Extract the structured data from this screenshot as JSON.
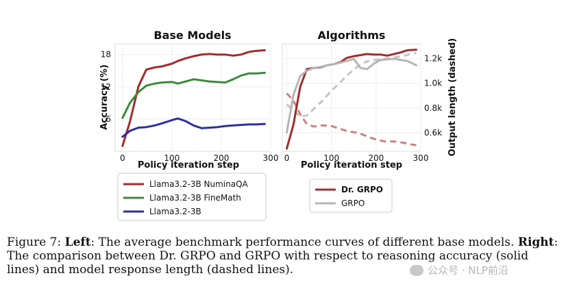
{
  "chart_data": [
    {
      "type": "line",
      "title": "Base Models",
      "xlabel": "Policy iteration step",
      "ylabel": "Accuracy (%)",
      "xlim": [
        -15,
        300
      ],
      "ylim": [
        0,
        20
      ],
      "xticks": [
        0,
        100,
        200,
        300
      ],
      "yticks": [
        6,
        12,
        18
      ],
      "series": [
        {
          "name": "Llama3.2-3B NuminaQA",
          "color": "#a32a2a",
          "x": [
            0,
            15,
            32,
            48,
            65,
            80,
            100,
            112,
            128,
            144,
            160,
            176,
            192,
            208,
            224,
            240,
            256,
            272,
            288
          ],
          "values": [
            1.0,
            5.5,
            12.0,
            15.2,
            15.6,
            15.8,
            16.3,
            16.8,
            17.3,
            17.7,
            18.0,
            18.1,
            18.0,
            18.0,
            17.8,
            18.0,
            18.5,
            18.7,
            18.8
          ]
        },
        {
          "name": "Llama3.2-3B FineMath",
          "color": "#3a8a3a",
          "x": [
            0,
            15,
            32,
            48,
            65,
            80,
            100,
            112,
            128,
            144,
            160,
            176,
            192,
            208,
            224,
            240,
            256,
            272,
            288
          ],
          "values": [
            6.2,
            9.0,
            11.0,
            12.2,
            12.6,
            12.8,
            12.9,
            12.6,
            13.0,
            13.4,
            13.2,
            13.0,
            12.9,
            12.8,
            13.4,
            14.1,
            14.5,
            14.5,
            14.6
          ]
        },
        {
          "name": "Llama3.2-3B",
          "color": "#2b2fa0",
          "x": [
            0,
            15,
            32,
            48,
            65,
            80,
            100,
            112,
            128,
            144,
            160,
            176,
            192,
            208,
            224,
            240,
            256,
            272,
            288
          ],
          "values": [
            2.7,
            3.8,
            4.4,
            4.5,
            4.8,
            5.2,
            5.8,
            6.1,
            5.6,
            4.8,
            4.3,
            4.4,
            4.5,
            4.7,
            4.8,
            4.9,
            5.0,
            5.0,
            5.1
          ]
        }
      ],
      "legend": [
        "Llama3.2-3B NuminaQA",
        "Llama3.2-3B FineMath",
        "Llama3.2-3B"
      ],
      "legend_position": "below"
    },
    {
      "type": "line",
      "title": "Algorithms",
      "xlabel": "Policy iteration step",
      "ylabel_right": "Output length (dashed)",
      "xlim": [
        -10,
        300
      ],
      "ylim_accuracy": [
        0,
        20
      ],
      "ylim_right": [
        450,
        1320
      ],
      "xticks": [
        0,
        100,
        200,
        300
      ],
      "yticks_right": [
        600,
        800,
        1000,
        1200
      ],
      "ytick_labels_right": [
        "0.6k",
        "0.8k",
        "1.0k",
        "1.2k"
      ],
      "series": [
        {
          "name": "Dr. GRPO",
          "style": "solid",
          "axis": "accuracy",
          "color": "#a32a2a",
          "x": [
            0,
            15,
            30,
            45,
            60,
            75,
            90,
            105,
            120,
            135,
            150,
            165,
            180,
            195,
            210,
            225,
            240,
            255,
            270,
            290
          ],
          "values": [
            0.5,
            5.0,
            12.0,
            15.3,
            15.5,
            15.6,
            16.0,
            16.2,
            16.6,
            17.4,
            17.7,
            17.9,
            18.1,
            18.0,
            18.0,
            17.8,
            18.1,
            18.4,
            18.8,
            18.9
          ]
        },
        {
          "name": "GRPO",
          "style": "solid",
          "axis": "accuracy",
          "color": "#b5b5b5",
          "x": [
            0,
            15,
            30,
            45,
            60,
            75,
            90,
            105,
            120,
            135,
            150,
            165,
            180,
            195,
            210,
            225,
            240,
            255,
            270,
            290
          ],
          "values": [
            3.5,
            10.5,
            14.0,
            15.0,
            15.5,
            15.7,
            16.0,
            16.2,
            16.5,
            16.8,
            17.2,
            15.5,
            15.3,
            16.3,
            17.0,
            17.1,
            17.2,
            17.0,
            16.8,
            16.0
          ]
        },
        {
          "name": "Dr. GRPO length",
          "style": "dashed",
          "axis": "length",
          "color": "#cc8080",
          "x": [
            0,
            15,
            30,
            45,
            60,
            80,
            100,
            120,
            140,
            160,
            180,
            200,
            220,
            240,
            260,
            280,
            290
          ],
          "values": [
            920,
            860,
            750,
            670,
            650,
            660,
            655,
            630,
            610,
            600,
            570,
            545,
            530,
            530,
            520,
            505,
            500
          ]
        },
        {
          "name": "GRPO length",
          "style": "dashed",
          "axis": "length",
          "color": "#c5c5c5",
          "x": [
            0,
            15,
            30,
            45,
            60,
            80,
            100,
            120,
            140,
            160,
            180,
            200,
            220,
            240,
            260,
            280,
            290
          ],
          "values": [
            830,
            780,
            730,
            740,
            790,
            860,
            940,
            1010,
            1080,
            1140,
            1180,
            1190,
            1200,
            1210,
            1220,
            1240,
            1245
          ]
        }
      ],
      "legend": [
        "Dr. GRPO",
        "GRPO"
      ],
      "legend_position": "below"
    }
  ],
  "caption": {
    "label": "Figure 7:",
    "left_bold": "Left",
    "left_text": ": The average benchmark performance curves of different base models.",
    "right_bold": "Right",
    "right_text": ": The comparison between Dr. GRPO and GRPO with respect to reasoning accuracy (solid lines) and model response length (dashed lines)."
  },
  "watermark": "公众号 · NLP前沿"
}
